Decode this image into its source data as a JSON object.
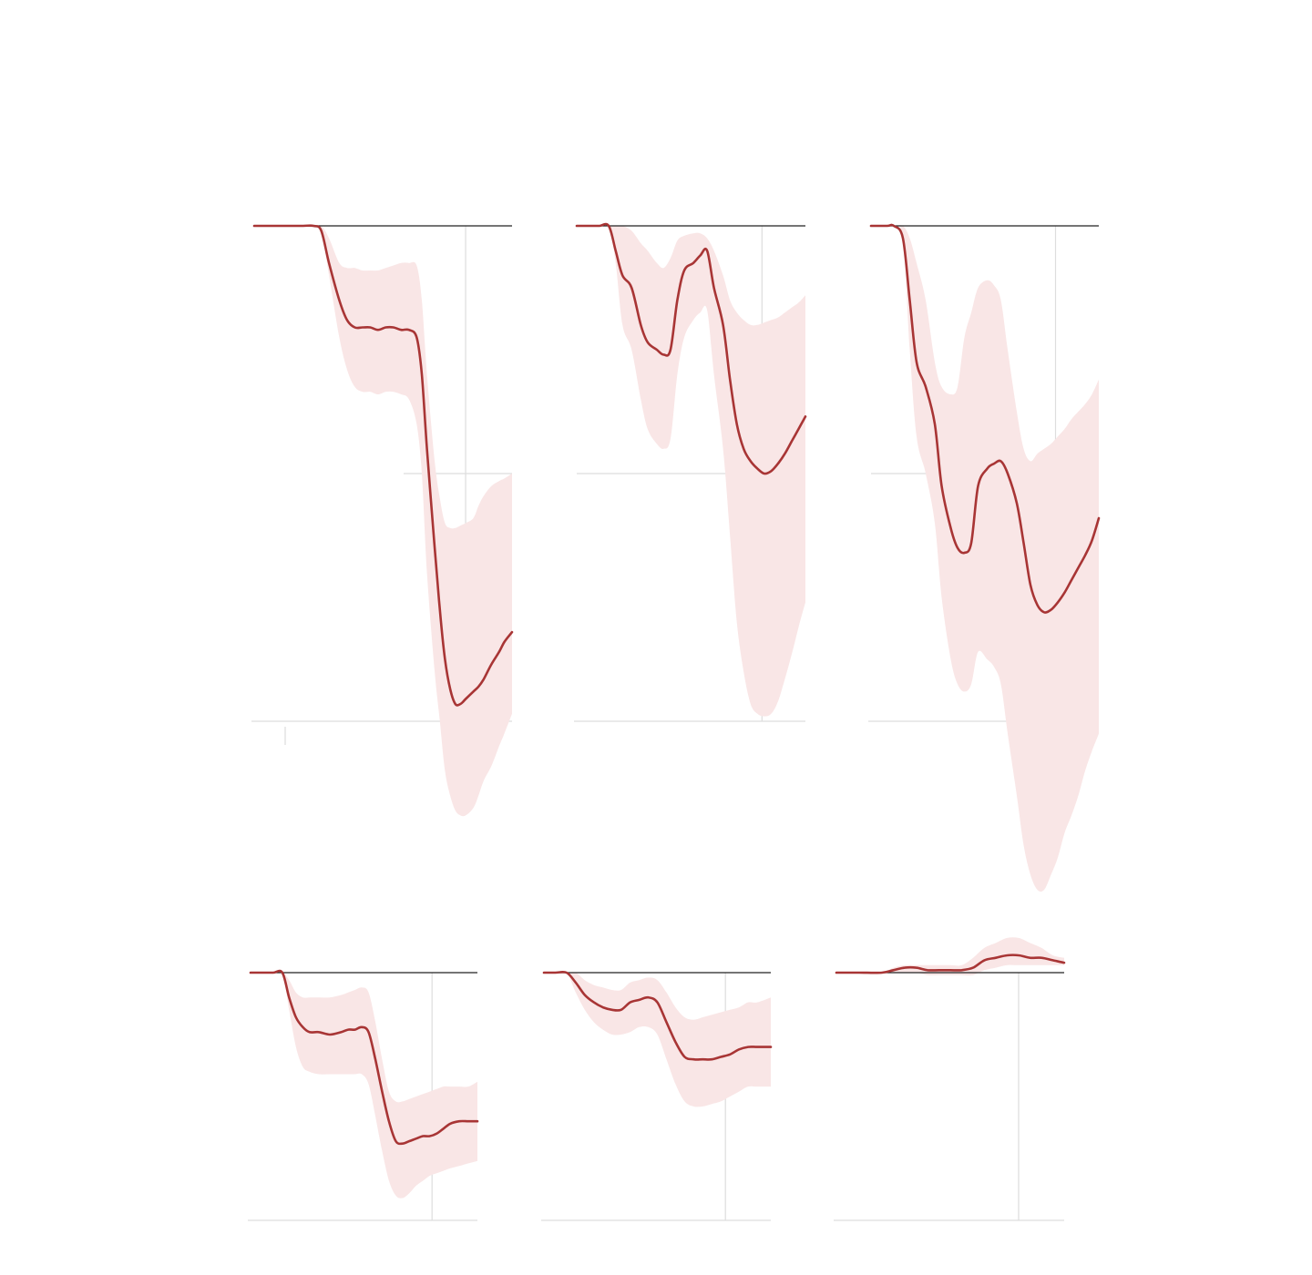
{
  "colors": {
    "line": "#a83535",
    "band": "#f9e6e6",
    "zero": "#222222",
    "grid": "#dddddd"
  },
  "chart_data": [
    {
      "type": "area",
      "title": "",
      "xlabel": "",
      "ylabel": "",
      "tick_labels": [],
      "xlim": [
        0,
        100
      ],
      "ylim": [
        -2,
        0
      ],
      "grid": true,
      "reference_x": 82,
      "series": [
        {
          "x": [
            0,
            12,
            19,
            23,
            26,
            29,
            33,
            36,
            39,
            42,
            45,
            48,
            51,
            54,
            57,
            60,
            63,
            65,
            67,
            70,
            72,
            74,
            76,
            78,
            80,
            82,
            85,
            87,
            89,
            92,
            95,
            97,
            100
          ],
          "y": [
            0,
            0,
            0,
            0,
            -0.02,
            -0.15,
            -0.3,
            -0.38,
            -0.41,
            -0.41,
            -0.41,
            -0.42,
            -0.41,
            -0.41,
            -0.42,
            -0.42,
            -0.45,
            -0.6,
            -0.9,
            -1.3,
            -1.55,
            -1.75,
            -1.87,
            -1.93,
            -1.93,
            -1.91,
            -1.88,
            -1.86,
            -1.83,
            -1.77,
            -1.72,
            -1.68,
            -1.64
          ],
          "lower": [
            0,
            0,
            0,
            0,
            -0.02,
            -0.2,
            -0.45,
            -0.58,
            -0.65,
            -0.67,
            -0.67,
            -0.68,
            -0.67,
            -0.67,
            -0.68,
            -0.7,
            -0.8,
            -1.0,
            -1.4,
            -1.8,
            -2.0,
            -2.2,
            -2.3,
            -2.36,
            -2.38,
            -2.38,
            -2.35,
            -2.3,
            -2.24,
            -2.18,
            -2.1,
            -2.05,
            -1.97
          ],
          "upper": [
            0,
            0,
            0,
            0,
            0,
            -0.05,
            -0.15,
            -0.17,
            -0.17,
            -0.18,
            -0.18,
            -0.18,
            -0.17,
            -0.16,
            -0.15,
            -0.15,
            -0.16,
            -0.3,
            -0.6,
            -0.95,
            -1.1,
            -1.2,
            -1.22,
            -1.22,
            -1.21,
            -1.2,
            -1.18,
            -1.13,
            -1.09,
            -1.05,
            -1.03,
            -1.02,
            -1.0
          ]
        }
      ]
    },
    {
      "type": "area",
      "title": "",
      "xlabel": "",
      "ylabel": "",
      "tick_labels": [],
      "xlim": [
        0,
        100
      ],
      "ylim": [
        -2,
        0
      ],
      "grid": true,
      "reference_x": 81,
      "series": [
        {
          "x": [
            0,
            7,
            10,
            14,
            17,
            20,
            24,
            28,
            31,
            35,
            38,
            41,
            44,
            47,
            51,
            54,
            57,
            60,
            64,
            67,
            70,
            73,
            76,
            79,
            82,
            85,
            88,
            91,
            94,
            97,
            100
          ],
          "y": [
            0,
            0,
            0,
            0,
            -0.1,
            -0.2,
            -0.25,
            -0.4,
            -0.47,
            -0.5,
            -0.52,
            -0.5,
            -0.3,
            -0.18,
            -0.15,
            -0.12,
            -0.1,
            -0.25,
            -0.4,
            -0.62,
            -0.8,
            -0.9,
            -0.95,
            -0.98,
            -1.0,
            -0.99,
            -0.96,
            -0.92,
            -0.87,
            -0.82,
            -0.77
          ],
          "lower": [
            0,
            0,
            0,
            0,
            -0.15,
            -0.4,
            -0.5,
            -0.7,
            -0.82,
            -0.88,
            -0.9,
            -0.86,
            -0.6,
            -0.45,
            -0.38,
            -0.35,
            -0.34,
            -0.6,
            -0.9,
            -1.25,
            -1.6,
            -1.8,
            -1.93,
            -1.97,
            -1.98,
            -1.97,
            -1.92,
            -1.83,
            -1.73,
            -1.62,
            -1.52
          ],
          "upper": [
            0,
            0,
            0,
            0,
            0,
            0,
            -0.02,
            -0.07,
            -0.1,
            -0.15,
            -0.17,
            -0.13,
            -0.06,
            -0.04,
            -0.03,
            -0.03,
            -0.05,
            -0.1,
            -0.2,
            -0.3,
            -0.35,
            -0.38,
            -0.4,
            -0.4,
            -0.39,
            -0.38,
            -0.37,
            -0.35,
            -0.33,
            -0.31,
            -0.28
          ]
        }
      ]
    },
    {
      "type": "area",
      "title": "",
      "xlabel": "",
      "ylabel": "",
      "tick_labels": [],
      "xlim": [
        0,
        100
      ],
      "ylim": [
        -2,
        0
      ],
      "grid": true,
      "reference_x": 81,
      "series": [
        {
          "x": [
            0,
            7,
            10,
            14,
            17,
            20,
            24,
            28,
            31,
            35,
            38,
            41,
            44,
            47,
            51,
            54,
            57,
            60,
            64,
            67,
            70,
            73,
            76,
            79,
            82,
            85,
            88,
            91,
            94,
            97,
            100
          ],
          "y": [
            0,
            0,
            0,
            -0.05,
            -0.3,
            -0.55,
            -0.65,
            -0.8,
            -1.05,
            -1.22,
            -1.3,
            -1.32,
            -1.28,
            -1.05,
            -0.98,
            -0.96,
            -0.95,
            -1.0,
            -1.12,
            -1.28,
            -1.45,
            -1.53,
            -1.56,
            -1.55,
            -1.52,
            -1.48,
            -1.43,
            -1.38,
            -1.33,
            -1.27,
            -1.18
          ],
          "lower": [
            0,
            0,
            0,
            -0.05,
            -0.5,
            -0.85,
            -1.0,
            -1.2,
            -1.5,
            -1.75,
            -1.85,
            -1.88,
            -1.85,
            -1.72,
            -1.75,
            -1.78,
            -1.85,
            -2.05,
            -2.3,
            -2.5,
            -2.62,
            -2.68,
            -2.68,
            -2.62,
            -2.55,
            -2.45,
            -2.38,
            -2.3,
            -2.2,
            -2.12,
            -2.05
          ],
          "upper": [
            0,
            0,
            0,
            0,
            -0.05,
            -0.15,
            -0.3,
            -0.55,
            -0.65,
            -0.68,
            -0.65,
            -0.45,
            -0.35,
            -0.25,
            -0.22,
            -0.24,
            -0.3,
            -0.5,
            -0.75,
            -0.9,
            -0.95,
            -0.92,
            -0.9,
            -0.88,
            -0.85,
            -0.82,
            -0.78,
            -0.75,
            -0.72,
            -0.68,
            -0.62
          ]
        }
      ]
    },
    {
      "type": "area",
      "title": "",
      "xlabel": "",
      "ylabel": "",
      "tick_labels": [],
      "xlim": [
        0,
        100
      ],
      "ylim": [
        -2,
        0
      ],
      "grid": true,
      "reference_x": 80,
      "series": [
        {
          "x": [
            0,
            5,
            10,
            14,
            17,
            20,
            23,
            26,
            30,
            35,
            40,
            43,
            46,
            49,
            52,
            55,
            58,
            61,
            64,
            67,
            70,
            73,
            76,
            79,
            82,
            85,
            88,
            92,
            96,
            100
          ],
          "y": [
            0,
            0,
            0,
            0,
            -0.1,
            -0.18,
            -0.22,
            -0.24,
            -0.24,
            -0.25,
            -0.24,
            -0.23,
            -0.23,
            -0.22,
            -0.24,
            -0.35,
            -0.48,
            -0.6,
            -0.68,
            -0.69,
            -0.68,
            -0.67,
            -0.66,
            -0.66,
            -0.65,
            -0.63,
            -0.61,
            -0.6,
            -0.6,
            -0.6
          ],
          "lower": [
            0,
            0,
            0,
            0,
            -0.15,
            -0.3,
            -0.38,
            -0.4,
            -0.41,
            -0.41,
            -0.41,
            -0.41,
            -0.41,
            -0.41,
            -0.45,
            -0.58,
            -0.72,
            -0.84,
            -0.9,
            -0.91,
            -0.89,
            -0.86,
            -0.84,
            -0.82,
            -0.81,
            -0.8,
            -0.79,
            -0.78,
            -0.77,
            -0.76
          ],
          "upper": [
            0,
            0,
            0,
            0,
            -0.03,
            -0.08,
            -0.1,
            -0.1,
            -0.1,
            -0.1,
            -0.09,
            -0.08,
            -0.07,
            -0.06,
            -0.08,
            -0.2,
            -0.35,
            -0.48,
            -0.52,
            -0.52,
            -0.51,
            -0.5,
            -0.49,
            -0.48,
            -0.47,
            -0.46,
            -0.46,
            -0.46,
            -0.46,
            -0.44
          ]
        }
      ]
    },
    {
      "type": "area",
      "title": "",
      "xlabel": "",
      "ylabel": "",
      "tick_labels": [],
      "xlim": [
        0,
        100
      ],
      "ylim": [
        -2,
        0
      ],
      "grid": true,
      "reference_x": 80,
      "series": [
        {
          "x": [
            0,
            5,
            10,
            14,
            18,
            22,
            26,
            30,
            34,
            38,
            42,
            46,
            50,
            54,
            58,
            62,
            66,
            70,
            74,
            78,
            82,
            86,
            90,
            94,
            100
          ],
          "y": [
            0,
            0,
            0,
            -0.04,
            -0.09,
            -0.12,
            -0.14,
            -0.15,
            -0.15,
            -0.12,
            -0.11,
            -0.1,
            -0.12,
            -0.2,
            -0.28,
            -0.34,
            -0.35,
            -0.35,
            -0.35,
            -0.34,
            -0.33,
            -0.31,
            -0.3,
            -0.3,
            -0.3
          ],
          "lower": [
            0,
            0,
            0,
            -0.08,
            -0.15,
            -0.2,
            -0.23,
            -0.25,
            -0.25,
            -0.24,
            -0.22,
            -0.22,
            -0.25,
            -0.35,
            -0.45,
            -0.52,
            -0.54,
            -0.54,
            -0.53,
            -0.52,
            -0.5,
            -0.48,
            -0.46,
            -0.46,
            -0.46
          ],
          "upper": [
            0,
            0,
            0,
            0,
            -0.03,
            -0.05,
            -0.06,
            -0.07,
            -0.07,
            -0.04,
            -0.03,
            -0.02,
            -0.03,
            -0.08,
            -0.14,
            -0.18,
            -0.19,
            -0.18,
            -0.17,
            -0.16,
            -0.15,
            -0.14,
            -0.12,
            -0.12,
            -0.1
          ]
        }
      ]
    },
    {
      "type": "area",
      "title": "",
      "xlabel": "",
      "ylabel": "",
      "tick_labels": [],
      "xlim": [
        0,
        100
      ],
      "ylim": [
        -2,
        0
      ],
      "grid": true,
      "reference_x": 80,
      "series": [
        {
          "x": [
            0,
            10,
            20,
            25,
            30,
            35,
            40,
            45,
            50,
            55,
            60,
            65,
            70,
            75,
            80,
            85,
            90,
            95,
            100
          ],
          "y": [
            0,
            0,
            0,
            0.01,
            0.02,
            0.02,
            0.01,
            0.01,
            0.01,
            0.01,
            0.02,
            0.05,
            0.06,
            0.07,
            0.07,
            0.06,
            0.06,
            0.05,
            0.04
          ],
          "lower": [
            0,
            0,
            0,
            0,
            0,
            0,
            -0.01,
            -0.01,
            -0.01,
            -0.01,
            -0.01,
            0.01,
            0.02,
            0.03,
            0.03,
            0.03,
            0.03,
            0.03,
            0.03
          ],
          "upper": [
            0,
            0,
            0,
            0.02,
            0.03,
            0.03,
            0.03,
            0.03,
            0.03,
            0.03,
            0.06,
            0.1,
            0.12,
            0.14,
            0.14,
            0.12,
            0.1,
            0.07,
            0.06
          ]
        }
      ]
    }
  ]
}
